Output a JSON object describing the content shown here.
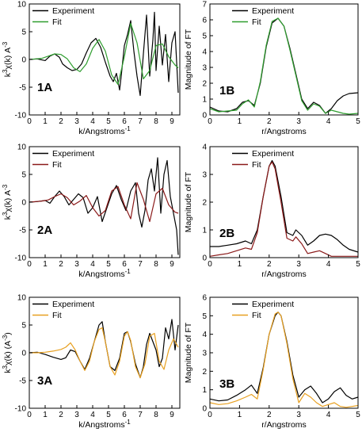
{
  "chart_data": [
    {
      "type": "line",
      "panel_label": "1A",
      "xlabel": "k/Angstroms",
      "xlabel_sup": "-1",
      "ylabel_parts": {
        "pre": "k",
        "sup": "3",
        "mid": "χ(k) A",
        "sup2": "-3",
        "post": ""
      },
      "xlim": [
        0,
        9.5
      ],
      "ylim": [
        -10,
        10
      ],
      "xticks": [
        0,
        1,
        2,
        3,
        4,
        5,
        6,
        7,
        8,
        9
      ],
      "yticks": [
        -10,
        -5,
        0,
        5,
        10
      ],
      "legend_position": "top-left",
      "series": [
        {
          "name": "Experiment",
          "color": "#000000",
          "x": [
            0,
            0.5,
            1.0,
            1.3,
            1.6,
            1.9,
            2.1,
            2.4,
            2.7,
            3.0,
            3.3,
            3.6,
            3.9,
            4.2,
            4.5,
            4.8,
            5.1,
            5.3,
            5.5,
            5.7,
            5.8,
            6.0,
            6.2,
            6.4,
            6.6,
            6.8,
            7.0,
            7.2,
            7.4,
            7.6,
            7.8,
            7.9,
            8.0,
            8.2,
            8.4,
            8.6,
            8.8,
            9.0,
            9.2,
            9.4
          ],
          "y": [
            0,
            0.1,
            -0.2,
            0.6,
            1.0,
            0.4,
            -0.8,
            -1.5,
            -2.0,
            -1.8,
            -0.8,
            1.2,
            3.0,
            3.8,
            2.2,
            -0.5,
            -3.0,
            -4.0,
            -2.5,
            -5.5,
            -3.0,
            2.5,
            4.5,
            7.0,
            1.5,
            -3.0,
            -6.5,
            1.0,
            8.0,
            -3.0,
            3.5,
            8.5,
            -2.0,
            6.0,
            -1.0,
            4.5,
            -4.0,
            3.0,
            5.0,
            -6.0
          ]
        },
        {
          "name": "Fit",
          "color": "#2f9e2f",
          "x": [
            0,
            0.4,
            0.8,
            1.2,
            1.6,
            2.0,
            2.4,
            2.8,
            3.2,
            3.6,
            4.0,
            4.4,
            4.8,
            5.2,
            5.6,
            6.0,
            6.4,
            6.8,
            7.2,
            7.6,
            8.0,
            8.4,
            8.8,
            9.2,
            9.4
          ],
          "y": [
            0,
            0.1,
            0.2,
            0.6,
            1.0,
            0.9,
            0.1,
            -1.5,
            -2.2,
            -0.8,
            2.0,
            3.6,
            1.5,
            -2.8,
            -4.5,
            0.5,
            6.5,
            3.0,
            -3.5,
            -2.0,
            2.5,
            2.8,
            0.5,
            -1.0,
            -1.5
          ]
        }
      ]
    },
    {
      "type": "line",
      "panel_label": "1B",
      "xlabel": "r/Angstroms",
      "ylabel": "Magnitude of FT",
      "xlim": [
        0,
        5
      ],
      "ylim": [
        0,
        7
      ],
      "xticks": [
        0,
        1,
        2,
        3,
        4,
        5
      ],
      "yticks": [
        0,
        1,
        2,
        3,
        4,
        5,
        6,
        7
      ],
      "legend_position": "top-center",
      "series": [
        {
          "name": "Experiment",
          "color": "#000000",
          "x": [
            0,
            0.3,
            0.6,
            0.9,
            1.1,
            1.3,
            1.5,
            1.7,
            1.9,
            2.1,
            2.3,
            2.5,
            2.7,
            2.9,
            3.1,
            3.3,
            3.5,
            3.7,
            3.9,
            4.1,
            4.3,
            4.5,
            4.7,
            5.0
          ],
          "y": [
            0.5,
            0.25,
            0.2,
            0.4,
            0.8,
            0.9,
            0.6,
            2.0,
            4.3,
            5.8,
            6.1,
            5.6,
            4.2,
            2.6,
            1.0,
            0.4,
            0.8,
            0.6,
            0.1,
            0.4,
            0.9,
            1.2,
            1.35,
            1.4
          ]
        },
        {
          "name": "Fit",
          "color": "#2f9e2f",
          "x": [
            0,
            0.3,
            0.6,
            0.9,
            1.1,
            1.3,
            1.5,
            1.7,
            1.9,
            2.1,
            2.3,
            2.5,
            2.7,
            2.9,
            3.1,
            3.3,
            3.5,
            3.7,
            3.9,
            4.1,
            4.3,
            4.5,
            4.7,
            5.0
          ],
          "y": [
            0.4,
            0.2,
            0.25,
            0.3,
            0.7,
            0.95,
            0.5,
            2.1,
            4.4,
            5.9,
            6.1,
            5.6,
            4.1,
            2.5,
            0.9,
            0.3,
            0.7,
            0.55,
            0.1,
            0.3,
            0.2,
            0.1,
            0.05,
            0.1
          ]
        }
      ]
    },
    {
      "type": "line",
      "panel_label": "2A",
      "xlabel": "k/Angstroms",
      "xlabel_sup": "-1",
      "ylabel_parts": {
        "pre": "k",
        "sup": "3",
        "mid": "χ(k) A",
        "sup2": "-3",
        "post": ""
      },
      "xlim": [
        0,
        9.5
      ],
      "ylim": [
        -10,
        10
      ],
      "xticks": [
        0,
        1,
        2,
        3,
        4,
        5,
        6,
        7,
        8,
        9
      ],
      "yticks": [
        -10,
        -5,
        0,
        5,
        10
      ],
      "legend_position": "top-left",
      "series": [
        {
          "name": "Experiment",
          "color": "#000000",
          "x": [
            0,
            0.5,
            1.0,
            1.3,
            1.6,
            1.9,
            2.2,
            2.5,
            2.8,
            3.1,
            3.4,
            3.7,
            4.0,
            4.3,
            4.6,
            4.9,
            5.2,
            5.5,
            5.8,
            6.1,
            6.4,
            6.7,
            6.9,
            7.1,
            7.3,
            7.5,
            7.7,
            7.9,
            8.1,
            8.3,
            8.5,
            8.7,
            8.9,
            9.1,
            9.3,
            9.4
          ],
          "y": [
            0,
            0.1,
            0.3,
            -0.2,
            1.0,
            2.0,
            1.0,
            -0.5,
            0.5,
            1.5,
            0.8,
            -2.0,
            -1.0,
            1.0,
            -3.5,
            -1.0,
            1.5,
            3.0,
            0.5,
            -1.5,
            2.0,
            3.5,
            -2.0,
            -4.5,
            -1.5,
            4.0,
            6.0,
            2.0,
            8.0,
            -2.0,
            5.0,
            7.5,
            1.0,
            -2.0,
            -5.0,
            -9.5
          ]
        },
        {
          "name": "Fit",
          "color": "#8b1a1a",
          "x": [
            0,
            0.4,
            0.8,
            1.2,
            1.6,
            2.0,
            2.4,
            2.8,
            3.2,
            3.6,
            4.0,
            4.4,
            4.8,
            5.2,
            5.6,
            6.0,
            6.4,
            6.8,
            7.2,
            7.6,
            8.0,
            8.4,
            8.8,
            9.2,
            9.4
          ],
          "y": [
            0,
            0.1,
            0.2,
            0.4,
            1.0,
            1.5,
            0.8,
            -0.5,
            0.2,
            1.2,
            -1.0,
            -2.5,
            -1.5,
            2.0,
            2.8,
            -0.5,
            -3.0,
            3.5,
            0.5,
            -3.5,
            1.5,
            2.5,
            -0.5,
            -1.8,
            -2.0
          ]
        }
      ]
    },
    {
      "type": "line",
      "panel_label": "2B",
      "xlabel": "r/Angstroms",
      "ylabel": "Magnitude of FT",
      "xlim": [
        0,
        5
      ],
      "ylim": [
        0,
        4
      ],
      "xticks": [
        0,
        1,
        2,
        3,
        4,
        5
      ],
      "yticks": [
        0,
        1,
        2,
        3,
        4
      ],
      "legend_position": "top-center",
      "series": [
        {
          "name": "Experiment",
          "color": "#000000",
          "x": [
            0,
            0.3,
            0.6,
            0.9,
            1.2,
            1.4,
            1.6,
            1.8,
            2.0,
            2.1,
            2.2,
            2.4,
            2.6,
            2.8,
            2.9,
            3.1,
            3.3,
            3.5,
            3.7,
            3.9,
            4.1,
            4.3,
            4.5,
            4.7,
            5.0
          ],
          "y": [
            0.4,
            0.4,
            0.45,
            0.5,
            0.6,
            0.5,
            1.0,
            2.2,
            3.3,
            3.5,
            3.3,
            2.2,
            0.9,
            0.8,
            1.0,
            0.8,
            0.45,
            0.6,
            0.8,
            0.85,
            0.8,
            0.65,
            0.45,
            0.3,
            0.2
          ]
        },
        {
          "name": "Fit",
          "color": "#8b1a1a",
          "x": [
            0,
            0.3,
            0.6,
            0.9,
            1.2,
            1.4,
            1.6,
            1.8,
            2.0,
            2.1,
            2.2,
            2.4,
            2.6,
            2.8,
            2.9,
            3.1,
            3.3,
            3.5,
            3.7,
            3.9,
            4.1,
            4.3,
            4.5,
            4.7,
            5.0
          ],
          "y": [
            0.05,
            0.1,
            0.15,
            0.25,
            0.35,
            0.3,
            0.9,
            2.2,
            3.3,
            3.45,
            3.2,
            2.0,
            0.7,
            0.6,
            0.75,
            0.5,
            0.15,
            0.2,
            0.25,
            0.15,
            0.05,
            0.05,
            0.05,
            0.05,
            0.05
          ]
        }
      ]
    },
    {
      "type": "line",
      "panel_label": "3A",
      "xlabel": "k/Angstroms",
      "xlabel_sup": "-1",
      "ylabel_parts": {
        "pre": "k",
        "sup": "3",
        "mid": "χ(k) (A",
        "sup2": "-3",
        "post": ")"
      },
      "xlim": [
        0,
        9.5
      ],
      "ylim": [
        -10,
        10
      ],
      "xticks": [
        0,
        1,
        2,
        3,
        4,
        5,
        6,
        7,
        8,
        9
      ],
      "yticks": [
        -10,
        -5,
        0,
        5,
        10
      ],
      "legend_position": "top-left",
      "series": [
        {
          "name": "Experiment",
          "color": "#000000",
          "x": [
            0,
            0.5,
            1.0,
            1.5,
            2.0,
            2.3,
            2.6,
            2.9,
            3.2,
            3.5,
            3.8,
            4.1,
            4.4,
            4.6,
            4.8,
            5.1,
            5.4,
            5.7,
            6.0,
            6.2,
            6.4,
            6.7,
            7.0,
            7.2,
            7.4,
            7.6,
            7.8,
            8.0,
            8.2,
            8.4,
            8.6,
            8.8,
            9.0,
            9.2,
            9.4
          ],
          "y": [
            0,
            0.1,
            -0.3,
            -0.8,
            -1.2,
            -0.9,
            0.5,
            0.2,
            -1.5,
            -3.0,
            -1.0,
            2.0,
            5.0,
            5.6,
            2.0,
            -2.5,
            -3.2,
            -1.0,
            3.5,
            3.8,
            2.0,
            -2.0,
            -4.5,
            -2.5,
            1.5,
            3.5,
            2.0,
            0.5,
            -2.5,
            -1.0,
            4.5,
            2.5,
            6.0,
            0.5,
            5.0
          ]
        },
        {
          "name": "Fit",
          "color": "#e8a020",
          "x": [
            0,
            0.5,
            1.0,
            1.5,
            2.0,
            2.3,
            2.6,
            2.9,
            3.2,
            3.5,
            3.8,
            4.1,
            4.4,
            4.6,
            4.8,
            5.1,
            5.4,
            5.7,
            6.0,
            6.2,
            6.4,
            6.7,
            7.0,
            7.3,
            7.6,
            7.9,
            8.2,
            8.5,
            8.8,
            9.1,
            9.4
          ],
          "y": [
            0,
            0,
            0.1,
            0.3,
            0.6,
            1.0,
            1.8,
            0.5,
            -1.5,
            -3.2,
            -1.5,
            2.0,
            4.2,
            4.5,
            2.0,
            -2.5,
            -4.0,
            -1.5,
            3.0,
            3.8,
            2.2,
            -2.5,
            -4.5,
            -2.0,
            3.0,
            3.5,
            -1.5,
            -3.0,
            0.5,
            2.5,
            1.0
          ]
        }
      ]
    },
    {
      "type": "line",
      "panel_label": "3B",
      "xlabel": "r/Angstroms",
      "ylabel": "Magnitude of FT",
      "xlim": [
        0,
        5
      ],
      "ylim": [
        0,
        6
      ],
      "xticks": [
        0,
        1,
        2,
        3,
        4,
        5
      ],
      "yticks": [
        0,
        1,
        2,
        3,
        4,
        5,
        6
      ],
      "legend_position": "top-center",
      "series": [
        {
          "name": "Experiment",
          "color": "#000000",
          "x": [
            0,
            0.3,
            0.6,
            0.9,
            1.2,
            1.4,
            1.6,
            1.8,
            2.0,
            2.2,
            2.3,
            2.4,
            2.6,
            2.8,
            3.0,
            3.2,
            3.4,
            3.6,
            3.8,
            4.0,
            4.2,
            4.4,
            4.6,
            4.8,
            5.0
          ],
          "y": [
            0.5,
            0.4,
            0.45,
            0.7,
            1.0,
            1.25,
            0.8,
            2.2,
            4.0,
            5.0,
            5.2,
            5.0,
            3.6,
            1.8,
            0.6,
            1.0,
            1.2,
            0.8,
            0.3,
            0.5,
            0.9,
            1.1,
            0.7,
            0.5,
            0.6
          ]
        },
        {
          "name": "Fit",
          "color": "#e8a020",
          "x": [
            0,
            0.3,
            0.6,
            0.9,
            1.2,
            1.4,
            1.6,
            1.8,
            2.0,
            2.2,
            2.3,
            2.4,
            2.6,
            2.8,
            3.0,
            3.2,
            3.4,
            3.6,
            3.8,
            4.0,
            4.2,
            4.4,
            4.6,
            4.8,
            5.0
          ],
          "y": [
            0.3,
            0.2,
            0.25,
            0.4,
            0.6,
            0.75,
            0.5,
            2.1,
            4.0,
            5.1,
            5.2,
            5.0,
            3.5,
            1.6,
            0.3,
            0.8,
            0.6,
            0.3,
            0.1,
            0.2,
            0.3,
            0.1,
            0.05,
            0.1,
            0.15
          ]
        }
      ]
    }
  ]
}
